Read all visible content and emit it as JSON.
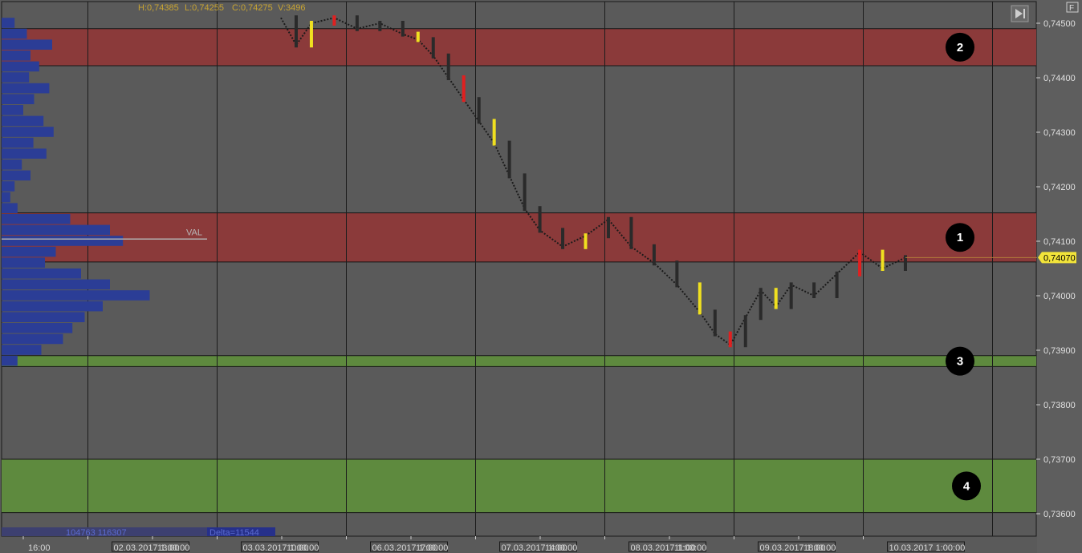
{
  "chart_data": {
    "type": "candlestick",
    "header": {
      "high_label": "H:0,74385",
      "low_label": "L:0,74255",
      "close_label": "C:0,74275",
      "volume_label": "V:3496"
    },
    "y_ticks": [
      "0,74500",
      "0,74400",
      "0,74300",
      "0,74200",
      "0,74100",
      "0,74000",
      "0,73900",
      "0,73800",
      "0,73700",
      "0,73600"
    ],
    "y_values": [
      0.745,
      0.744,
      0.743,
      0.742,
      0.741,
      0.74,
      0.739,
      0.738,
      0.737,
      0.736
    ],
    "current_price": {
      "label": "0,74070",
      "value": 0.7407
    },
    "zones": [
      {
        "label": "1",
        "price_top": 0.74152,
        "price_bottom": 0.74062,
        "color": "#8b3a3a"
      },
      {
        "label": "2",
        "price_top": 0.7449,
        "price_bottom": 0.74422,
        "color": "#8b3a3a"
      },
      {
        "label": "3",
        "price_top": 0.7389,
        "price_bottom": 0.7387,
        "color": "#5e8a3e"
      },
      {
        "label": "4",
        "price_top": 0.737,
        "price_bottom": 0.73602,
        "color": "#5e8a3e"
      }
    ],
    "val_line": {
      "label": "VAL",
      "price": 0.74104
    },
    "time_labels": [
      {
        "text": "16:00",
        "slot": 0
      },
      {
        "text": "02.03.2017 1:00:00",
        "slot": 1
      },
      {
        "text": "13:00",
        "slot": 2
      },
      {
        "text": "03.03.2017 1:00:00",
        "slot": 3
      },
      {
        "text": "10:00",
        "slot": 4
      },
      {
        "text": "06.03.2017 1:00:00",
        "slot": 5
      },
      {
        "text": "17:00",
        "slot": 6
      },
      {
        "text": "07.03.2017 1:00:00",
        "slot": 7
      },
      {
        "text": "14:00",
        "slot": 8
      },
      {
        "text": "08.03.2017 1:00:00",
        "slot": 9
      },
      {
        "text": "11:00",
        "slot": 10
      },
      {
        "text": "09.03.2017 1:00:00",
        "slot": 11
      },
      {
        "text": "18:00",
        "slot": 12
      },
      {
        "text": "10.03.2017 1:00:00",
        "slot": 13
      }
    ],
    "footer": {
      "volume_text": "104763 116307",
      "delta_text": "Delta=11544"
    },
    "price_path": [
      [
        0.0,
        0.7451
      ],
      [
        0.02,
        0.7446
      ],
      [
        0.04,
        0.745
      ],
      [
        0.07,
        0.7451
      ],
      [
        0.1,
        0.7449
      ],
      [
        0.13,
        0.745
      ],
      [
        0.16,
        0.7448
      ],
      [
        0.18,
        0.7447
      ],
      [
        0.2,
        0.7444
      ],
      [
        0.22,
        0.744
      ],
      [
        0.24,
        0.7436
      ],
      [
        0.26,
        0.7432
      ],
      [
        0.28,
        0.7428
      ],
      [
        0.3,
        0.7422
      ],
      [
        0.32,
        0.7416
      ],
      [
        0.34,
        0.7412
      ],
      [
        0.37,
        0.7409
      ],
      [
        0.4,
        0.7411
      ],
      [
        0.43,
        0.7414
      ],
      [
        0.46,
        0.7409
      ],
      [
        0.49,
        0.7406
      ],
      [
        0.52,
        0.7402
      ],
      [
        0.55,
        0.7397
      ],
      [
        0.57,
        0.7393
      ],
      [
        0.59,
        0.7391
      ],
      [
        0.61,
        0.7396
      ],
      [
        0.63,
        0.7401
      ],
      [
        0.65,
        0.7398
      ],
      [
        0.67,
        0.7402
      ],
      [
        0.7,
        0.74
      ],
      [
        0.73,
        0.7404
      ],
      [
        0.76,
        0.7408
      ],
      [
        0.79,
        0.7405
      ],
      [
        0.82,
        0.7407
      ]
    ],
    "volume_profile": [
      [
        0.745,
        18
      ],
      [
        0.7448,
        35
      ],
      [
        0.7446,
        70
      ],
      [
        0.7444,
        40
      ],
      [
        0.7442,
        52
      ],
      [
        0.744,
        38
      ],
      [
        0.7438,
        66
      ],
      [
        0.7436,
        45
      ],
      [
        0.7434,
        30
      ],
      [
        0.7432,
        58
      ],
      [
        0.743,
        72
      ],
      [
        0.7428,
        44
      ],
      [
        0.7426,
        62
      ],
      [
        0.7424,
        28
      ],
      [
        0.7422,
        40
      ],
      [
        0.742,
        18
      ],
      [
        0.7418,
        12
      ],
      [
        0.7416,
        22
      ],
      [
        0.7414,
        95
      ],
      [
        0.7412,
        150
      ],
      [
        0.741,
        168
      ],
      [
        0.7408,
        75
      ],
      [
        0.7406,
        60
      ],
      [
        0.7404,
        110
      ],
      [
        0.7402,
        150
      ],
      [
        0.74,
        205
      ],
      [
        0.7398,
        140
      ],
      [
        0.7396,
        115
      ],
      [
        0.7394,
        98
      ],
      [
        0.7392,
        85
      ],
      [
        0.739,
        55
      ],
      [
        0.7388,
        22
      ]
    ]
  }
}
